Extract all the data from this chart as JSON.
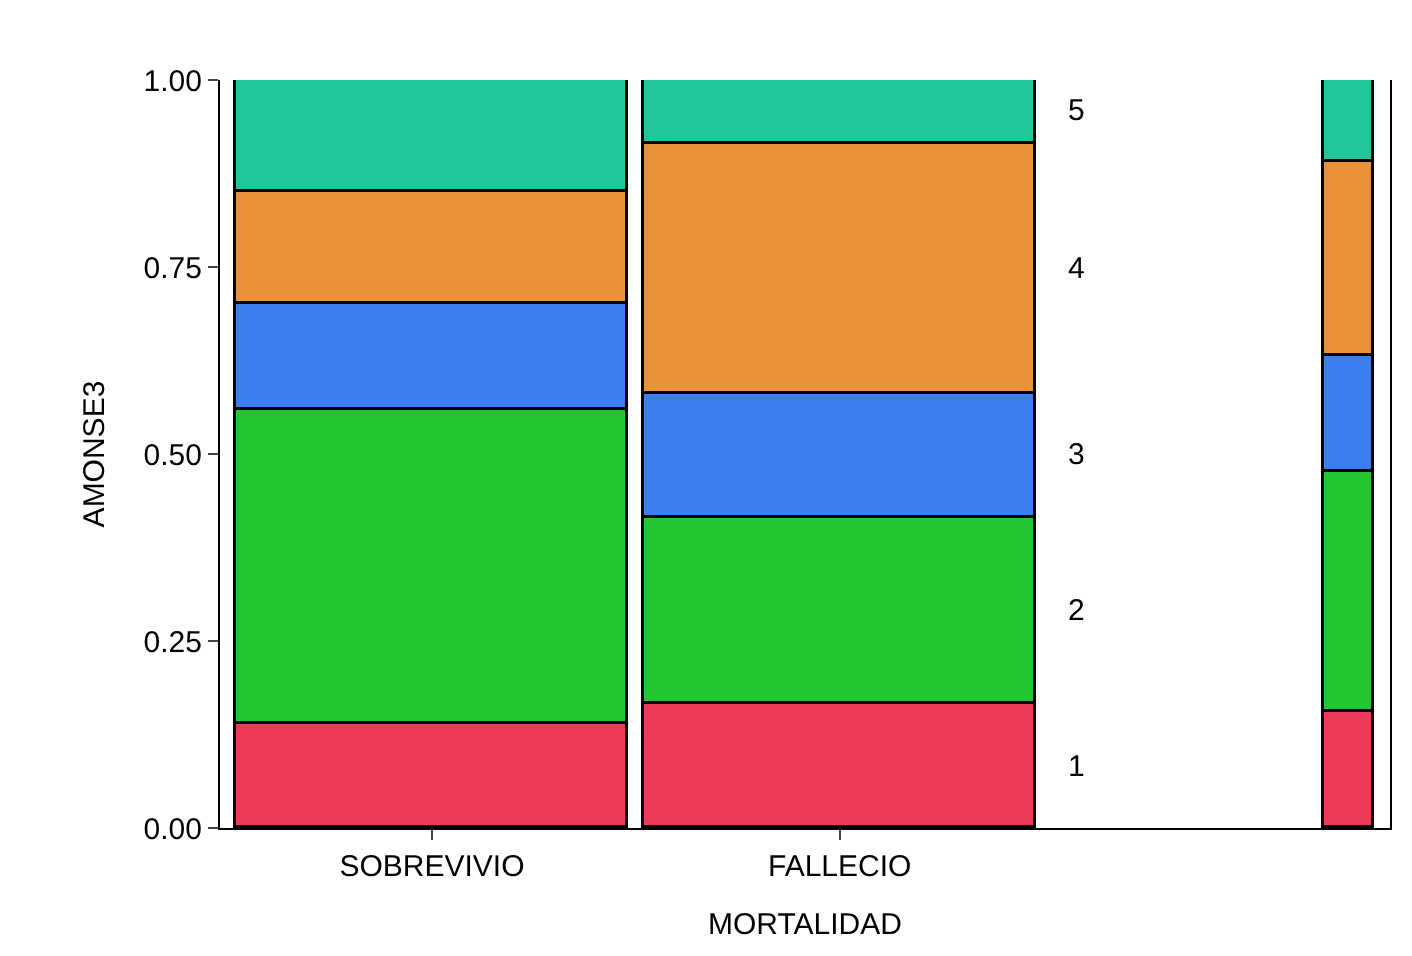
{
  "chart_data": {
    "type": "bar",
    "stacked": true,
    "xlabel": "MORTALIDAD",
    "ylabel": "AMONSE3",
    "categories": [
      "SOBREVIVIO",
      "FALLECIO",
      null
    ],
    "series": [
      {
        "name": "1",
        "color": "#ee3a5a",
        "values": [
          0.14,
          0.165,
          0.155
        ]
      },
      {
        "name": "2",
        "color": "#22c532",
        "values": [
          0.42,
          0.25,
          0.32
        ]
      },
      {
        "name": "3",
        "color": "#3a7ef0",
        "values": [
          0.14,
          0.165,
          0.155
        ]
      },
      {
        "name": "4",
        "color": "#ea9238",
        "values": [
          0.15,
          0.335,
          0.26
        ]
      },
      {
        "name": "5",
        "color": "#22c59a",
        "values": [
          0.15,
          0.085,
          0.11
        ]
      }
    ],
    "ylim": [
      0,
      1
    ],
    "yticks": [
      {
        "value": 0,
        "label": "0.00"
      },
      {
        "value": 0.25,
        "label": "0.25"
      },
      {
        "value": 0.5,
        "label": "0.50"
      },
      {
        "value": 0.75,
        "label": "0.75"
      },
      {
        "value": 1,
        "label": "1.00"
      }
    ],
    "legend": false
  }
}
